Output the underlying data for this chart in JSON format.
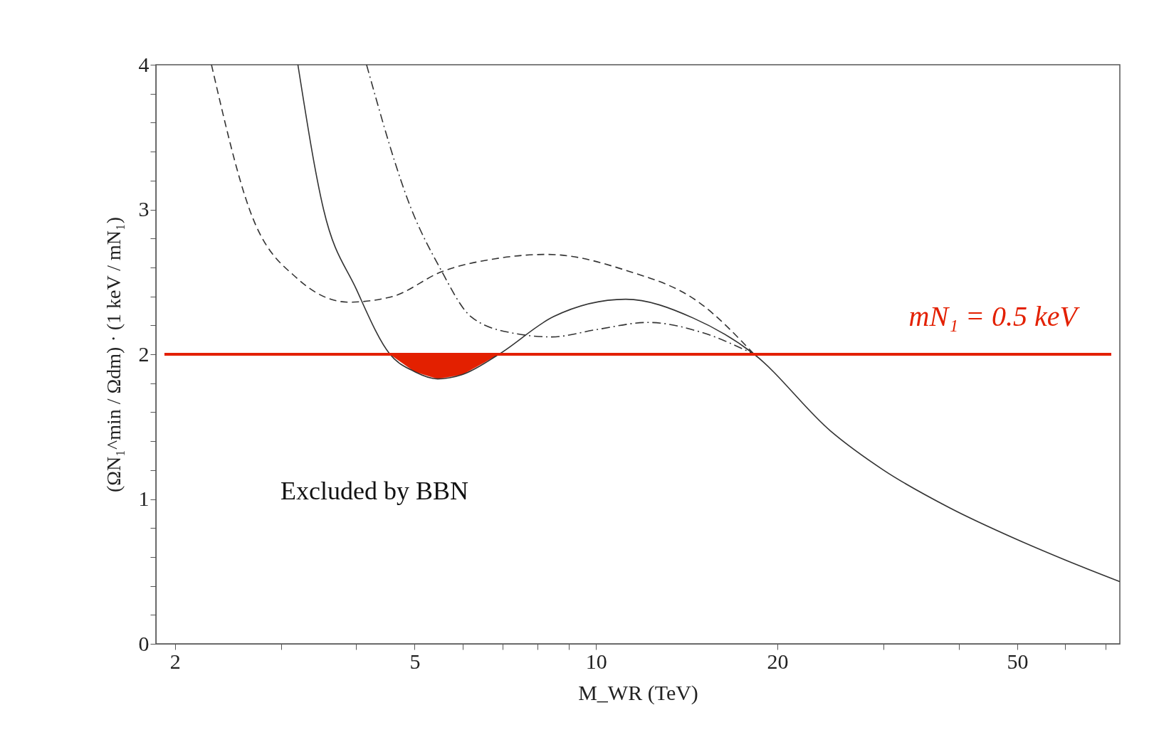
{
  "chart_data": {
    "type": "line",
    "xlabel": "M_WR (TeV)",
    "ylabel": "(ΩN₁^min / Ωdm) · (1 keV / mN₁)",
    "xlim": [
      1.86,
      74
    ],
    "ylim": [
      0,
      4
    ],
    "log": "x",
    "xticks": [
      2,
      {
        "value": 3,
        "label": null
      },
      {
        "value": 4,
        "label": null
      },
      5,
      {
        "value": 6,
        "label": null
      },
      {
        "value": 7,
        "label": null
      },
      {
        "value": 8,
        "label": null
      },
      {
        "value": 9,
        "label": null
      },
      10,
      20,
      {
        "value": 30,
        "label": null
      },
      {
        "value": 40,
        "label": null
      },
      50,
      {
        "value": 60,
        "label": null
      },
      {
        "value": 70,
        "label": null
      }
    ],
    "yticks": [
      0,
      {
        "value": 0.2,
        "label": null
      },
      {
        "value": 0.4,
        "label": null
      },
      {
        "value": 0.6,
        "label": null
      },
      {
        "value": 0.8,
        "label": null
      },
      1,
      {
        "value": 1.2,
        "label": null
      },
      {
        "value": 1.4,
        "label": null
      },
      {
        "value": 1.6,
        "label": null
      },
      {
        "value": 1.8,
        "label": null
      },
      2,
      {
        "value": 2.2,
        "label": null
      },
      {
        "value": 2.4,
        "label": null
      },
      {
        "value": 2.6,
        "label": null
      },
      {
        "value": 2.8,
        "label": null
      },
      3,
      {
        "value": 3.2,
        "label": null
      },
      {
        "value": 3.4,
        "label": null
      },
      {
        "value": 3.6,
        "label": null
      },
      {
        "value": 3.8,
        "label": null
      },
      4
    ],
    "grid": false,
    "series": [
      {
        "type": "area",
        "color": "#e32000",
        "x": [
          4.55,
          5.0,
          5.46,
          6.0,
          6.9
        ],
        "values": [
          2,
          1.88,
          1.83,
          1.86,
          2
        ]
      },
      {
        "color": "#333333",
        "line_style": "solid",
        "x": [
          3.2,
          3.53,
          4.0,
          4.55,
          5.0,
          5.46,
          6.0,
          6.9,
          8.5,
          11.2,
          14.5,
          18.3,
          24.5,
          30,
          38.6,
          50,
          60,
          74
        ],
        "values": [
          4,
          3,
          2.45,
          2,
          1.88,
          1.83,
          1.86,
          2,
          2.26,
          2.38,
          2.25,
          2,
          1.47,
          1.2,
          0.94,
          0.72,
          0.58,
          0.43
        ]
      },
      {
        "color": "#333333",
        "line_style": "dashed",
        "x": [
          2.3,
          2.66,
          3.2,
          3.89,
          4.6,
          5.54,
          6.8,
          8.3,
          11.2,
          14.8,
          18.3
        ],
        "values": [
          4,
          3,
          2.52,
          2.36,
          2.4,
          2.57,
          2.66,
          2.69,
          2.58,
          2.36,
          2
        ]
      },
      {
        "color": "#333333",
        "line_style": "dashdot",
        "x": [
          4.16,
          4.94,
          5.5,
          6.2,
          7.2,
          8.45,
          10,
          12.2,
          15,
          18.3
        ],
        "values": [
          4,
          3,
          2.6,
          2.26,
          2.15,
          2.12,
          2.17,
          2.22,
          2.15,
          2
        ]
      }
    ],
    "ref_lines": [
      {
        "axis": "y",
        "value": 2,
        "color": "#e32000",
        "line_style": "solid"
      }
    ],
    "annotations": [
      "mN₁ = 0.5 keV",
      "Excluded by BBN"
    ]
  }
}
